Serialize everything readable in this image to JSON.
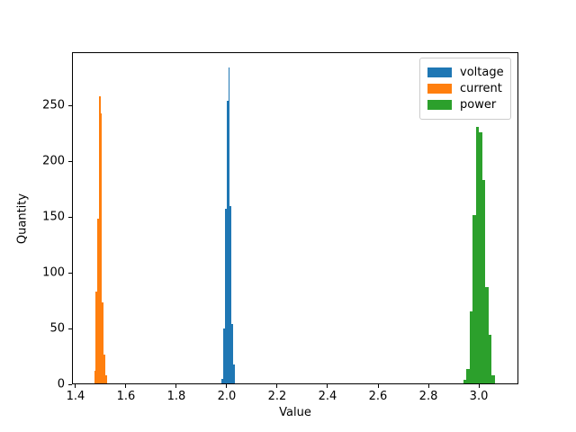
{
  "figure": {
    "background": "#ffffff",
    "text_color": "#000000"
  },
  "chart_data": {
    "type": "bar",
    "subtype": "histogram",
    "title": "",
    "xlabel": "Value",
    "ylabel": "Quantity",
    "xlim": [
      1.386,
      3.157
    ],
    "ylim": [
      0,
      297.6
    ],
    "grid": false,
    "xticks": [
      1.4,
      1.6,
      1.8,
      2.0,
      2.2,
      2.4,
      2.6,
      2.8,
      3.0
    ],
    "xtick_labels": [
      "1.4",
      "1.6",
      "1.8",
      "2.0",
      "2.2",
      "2.4",
      "2.6",
      "2.8",
      "3.0"
    ],
    "yticks": [
      0,
      50,
      100,
      150,
      200,
      250
    ],
    "ytick_labels": [
      "0",
      "50",
      "100",
      "150",
      "200",
      "250"
    ],
    "legend": {
      "position": "upper right",
      "entries": [
        "voltage",
        "current",
        "power"
      ]
    },
    "series": [
      {
        "name": "voltage",
        "color": "#1f77b4",
        "bin_start": 1.98,
        "bin_width": 0.0064,
        "counts": [
          5,
          50,
          157,
          254,
          284,
          160,
          54,
          18
        ]
      },
      {
        "name": "current",
        "color": "#ff7f0e",
        "bin_start": 1.4736,
        "bin_width": 0.0064,
        "counts": [
          12,
          83,
          148,
          258,
          243,
          73,
          27,
          8
        ]
      },
      {
        "name": "power",
        "color": "#2ca02c",
        "bin_start": 2.9375,
        "bin_width": 0.0125,
        "counts": [
          4,
          14,
          65,
          152,
          231,
          226,
          183,
          87,
          44,
          8
        ]
      }
    ]
  }
}
